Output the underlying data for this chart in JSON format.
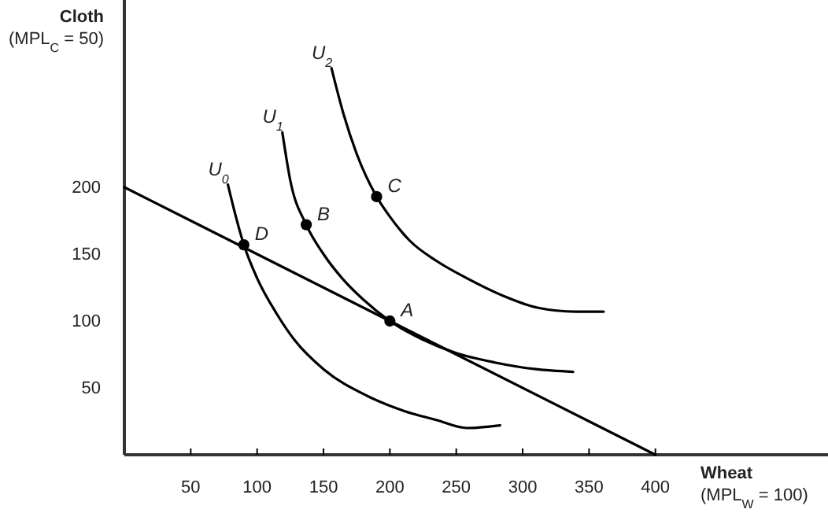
{
  "chart_data": {
    "type": "line",
    "xlabel": "Wheat\n(MPL$_{W}$ = 100)",
    "ylabel": "Cloth\n(MPL$_{C}$ = 50)",
    "xlim": [
      0,
      530
    ],
    "ylim": [
      0,
      340
    ],
    "xticks": [
      50,
      100,
      150,
      200,
      250,
      300,
      350,
      400
    ],
    "yticks": [
      50,
      100,
      150,
      200
    ],
    "marker": "none",
    "line_style": "solid",
    "grid": false,
    "series": [
      {
        "x": [
          0,
          400
        ],
        "values": [
          200,
          0
        ],
        "color": "#000000"
      },
      {
        "name": "U$_{0}$",
        "x": [
          78,
          84,
          90,
          100,
          115,
          128,
          150,
          183,
          210,
          235,
          258,
          283
        ],
        "values": [
          202,
          178,
          157,
          132,
          105,
          86,
          64,
          44,
          33,
          26,
          20,
          22
        ],
        "color": "#000000"
      },
      {
        "name": "U$_{1}$",
        "x": [
          119,
          125,
          137,
          150,
          164,
          180,
          200,
          225,
          250,
          279,
          310,
          338
        ],
        "values": [
          241,
          205,
          172,
          150,
          132,
          116,
          100,
          86,
          76,
          69,
          64,
          62
        ],
        "color": "#000000"
      },
      {
        "name": "U$_{2}$",
        "x": [
          156,
          165,
          175,
          190,
          200,
          215,
          235,
          258,
          285,
          311,
          340,
          361
        ],
        "values": [
          289,
          255,
          225,
          193,
          178,
          160,
          145,
          132,
          119,
          110,
          107,
          107
        ],
        "color": "#000000"
      },
      {
        "type": "scatter",
        "marker": "circle",
        "x": [
          90,
          137,
          190,
          200
        ],
        "values": [
          157,
          172,
          193,
          100
        ],
        "color": "#000000"
      }
    ],
    "annotations": [
      {
        "text": "D",
        "x": 90,
        "y": 157
      },
      {
        "text": "B",
        "x": 137,
        "y": 172
      },
      {
        "text": "C",
        "x": 190,
        "y": 193
      },
      {
        "text": "A",
        "x": 200,
        "y": 100
      }
    ]
  }
}
